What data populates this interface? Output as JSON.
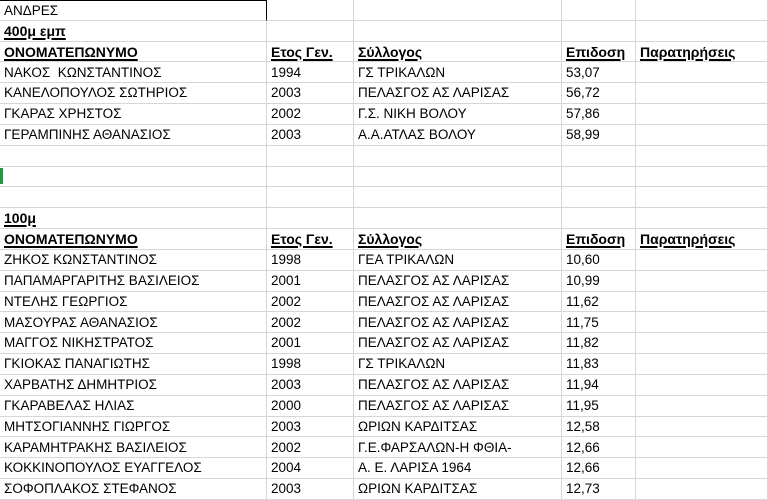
{
  "title_row": {
    "label": "ΑΝΔΡΕΣ"
  },
  "columns": [
    {
      "key": "name",
      "label": "ΟΝΟΜΑΤΕΠΩΝΥΜΟ"
    },
    {
      "key": "year",
      "label": "Ετος Γεν."
    },
    {
      "key": "club",
      "label": "Σύλλογος"
    },
    {
      "key": "time",
      "label": "Επιδοση"
    },
    {
      "key": "remarks",
      "label": "Παρατηρήσεις"
    }
  ],
  "sections": [
    {
      "event": "400μ εμπ",
      "rows": [
        {
          "name": "ΝΑΚΟΣ  ΚΩΝΣΤΑΝΤΙΝΟΣ",
          "year": "1994",
          "club": "ΓΣ ΤΡΙΚΑΛΩΝ",
          "time": "53,07",
          "remarks": ""
        },
        {
          "name": "ΚΑΝΕΛΟΠΟΥΛΟΣ ΣΩΤΗΡΙΟΣ",
          "year": "2003",
          "club": "ΠΕΛΑΣΓΟΣ ΑΣ ΛΑΡΙΣΑΣ",
          "time": "56,72",
          "remarks": "",
          "error_indicator": true
        },
        {
          "name": "ΓΚΑΡΑΣ ΧΡΗΣΤΟΣ",
          "year": "2002",
          "club": "Γ.Σ. ΝΙΚΗ ΒΟΛΟΥ",
          "time": "57,86",
          "remarks": ""
        },
        {
          "name": "ΓΕΡΑΜΠΙΝΗΣ ΑΘΑΝΑΣΙΟΣ",
          "year": "2003",
          "club": "Α.Α.ΑΤΛΑΣ ΒΟΛΟΥ",
          "time": "58,99",
          "remarks": ""
        }
      ]
    },
    {
      "event": "100μ",
      "rows": [
        {
          "name": "ΖΗΚΟΣ ΚΩΝΣΤΑΝΤΙΝΟΣ",
          "year": "1998",
          "club": "ΓΕΑ ΤΡΙΚΑΛΩΝ",
          "time": "10,60",
          "remarks": ""
        },
        {
          "name": "ΠΑΠΑΜΑΡΓΑΡΙΤΗΣ ΒΑΣΙΛΕΙΟΣ",
          "year": "2001",
          "club": "ΠΕΛΑΣΓΟΣ ΑΣ ΛΑΡΙΣΑΣ",
          "time": "10,99",
          "remarks": ""
        },
        {
          "name": "ΝΤΕΛΗΣ ΓΕΩΡΓΙΟΣ",
          "year": "2002",
          "club": "ΠΕΛΑΣΓΟΣ ΑΣ ΛΑΡΙΣΑΣ",
          "time": "11,62",
          "remarks": ""
        },
        {
          "name": "ΜΑΣΟΥΡΑΣ ΑΘΑΝΑΣΙΟΣ",
          "year": "2002",
          "club": "ΠΕΛΑΣΓΟΣ ΑΣ ΛΑΡΙΣΑΣ",
          "time": "11,75",
          "remarks": ""
        },
        {
          "name": "ΜΑΓΓΟΣ ΝΙΚΗΣΤΡΑΤΟΣ",
          "year": "2001",
          "club": "ΠΕΛΑΣΓΟΣ ΑΣ ΛΑΡΙΣΑΣ",
          "time": "11,82",
          "remarks": ""
        },
        {
          "name": "ΓΚΙΟΚΑΣ ΠΑΝΑΓΙΩΤΗΣ",
          "year": "1998",
          "club": "ΓΣ ΤΡΙΚΑΛΩΝ",
          "time": "11,83",
          "remarks": ""
        },
        {
          "name": "ΧΑΡΒΑΤΗΣ ΔΗΜΗΤΡΙΟΣ",
          "year": "2003",
          "club": "ΠΕΛΑΣΓΟΣ ΑΣ ΛΑΡΙΣΑΣ",
          "time": "11,94",
          "remarks": ""
        },
        {
          "name": "ΓΚΑΡΑΒΕΛΑΣ ΗΛΙΑΣ",
          "year": "2000",
          "club": "ΠΕΛΑΣΓΟΣ ΑΣ ΛΑΡΙΣΑΣ",
          "time": "11,95",
          "remarks": ""
        },
        {
          "name": "ΜΗΤΣΟΓΙΑΝΝΗΣ ΓΙΩΡΓΟΣ",
          "year": "2003",
          "club": "ΩΡΙΩΝ ΚΑΡΔΙΤΣΑΣ",
          "time": "12,58",
          "remarks": ""
        },
        {
          "name": "ΚΑΡΑΜΗΤΡΑΚΗΣ ΒΑΣΙΛΕΙΟΣ",
          "year": "2002",
          "club": "Γ.Ε.ΦΑΡΣΑΛΩΝ-Η ΦΘΙΑ-",
          "time": "12,66",
          "remarks": ""
        },
        {
          "name": "ΚΟΚΚΙΝΟΠΟΥΛΟΣ ΕΥΑΓΓΕΛΟΣ",
          "year": "2004",
          "club": "Α. Ε. ΛΑΡΙΣΑ 1964",
          "time": "12,66",
          "remarks": ""
        },
        {
          "name": "ΣΟΦΟΠΛΑΚΟΣ ΣΤΕΦΑΝΟΣ",
          "year": "2003",
          "club": "ΩΡΙΩΝ ΚΑΡΔΙΤΣΑΣ",
          "time": "12,73",
          "remarks": ""
        }
      ]
    }
  ],
  "indicators": {
    "error_triangle_note": "green number-stored-as-text triangle on cell with value 56,72",
    "selection_marker_note": "green selection border fragment on left edge of empty row between sections"
  },
  "colors": {
    "background": "#ffffff",
    "text": "#000000",
    "grid_line": "#d6d6d6",
    "dark_border": "#000000",
    "accent_green": "#1f9b3f"
  }
}
